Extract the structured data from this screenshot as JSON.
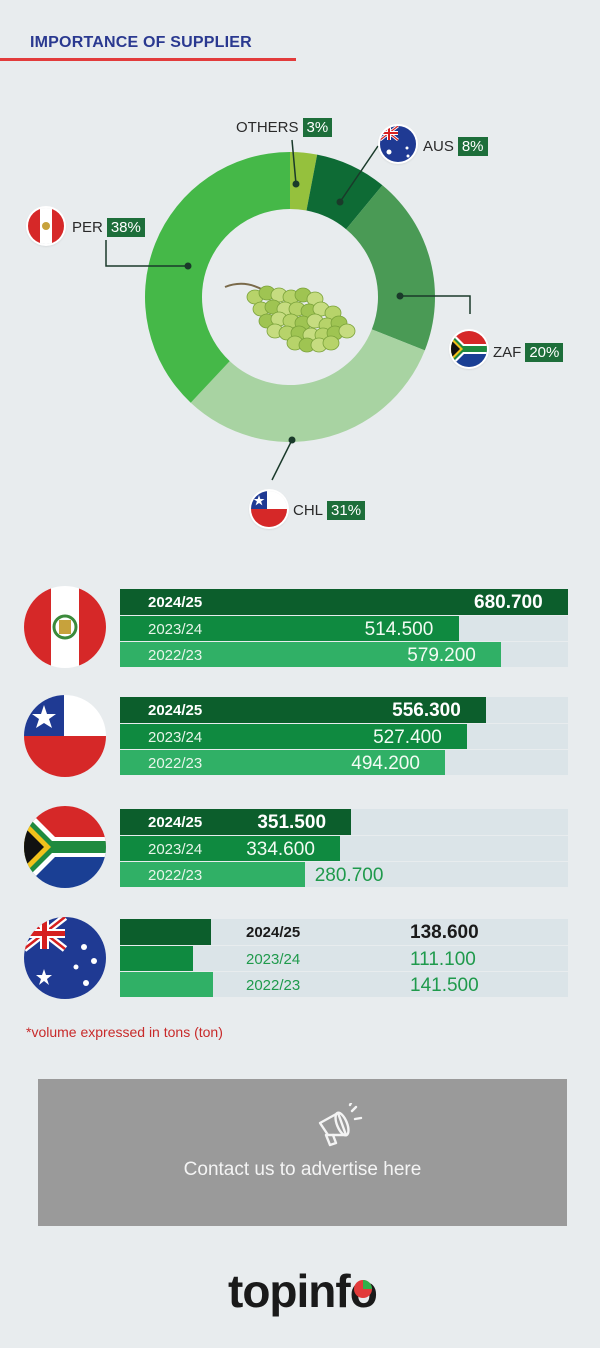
{
  "header": {
    "title": "IMPORTANCE OF SUPPLIER"
  },
  "chart_data": [
    {
      "type": "pie",
      "categories": [
        "OTHERS",
        "AUS",
        "ZAF",
        "CHL",
        "PER"
      ],
      "values": [
        3,
        8,
        20,
        31,
        38
      ],
      "labels": [
        "3%",
        "8%",
        "20%",
        "31%",
        "38%"
      ],
      "colors": [
        "#95c13d",
        "#0e6b35",
        "#4a9a55",
        "#a8d3a2",
        "#45b848"
      ]
    },
    {
      "type": "bar",
      "categories": [
        "PER",
        "CHL",
        "ZAF",
        "AUS"
      ],
      "series": [
        {
          "name": "2024/25",
          "values": [
            680700,
            556300,
            351500,
            138600
          ],
          "labels": [
            "680.700",
            "556.300",
            "351.500",
            "138.600"
          ]
        },
        {
          "name": "2023/24",
          "values": [
            514500,
            527400,
            334600,
            111100
          ],
          "labels": [
            "514.500",
            "527.400",
            "334.600",
            "111.100"
          ]
        },
        {
          "name": "2022/23",
          "values": [
            579200,
            494200,
            280700,
            141500
          ],
          "labels": [
            "579.200",
            "494.200",
            "280.700",
            "141.500"
          ]
        }
      ],
      "series_colors": [
        "#0c5e2c",
        "#0f8a40",
        "#30b066"
      ],
      "xlim": [
        0,
        680700
      ]
    }
  ],
  "note": "*volume expressed in tons (ton)",
  "ad": {
    "text": "Contact us to advertise here",
    "icon": "megaphone-icon"
  },
  "logo": {
    "text": "topinf",
    "accent": "o"
  }
}
